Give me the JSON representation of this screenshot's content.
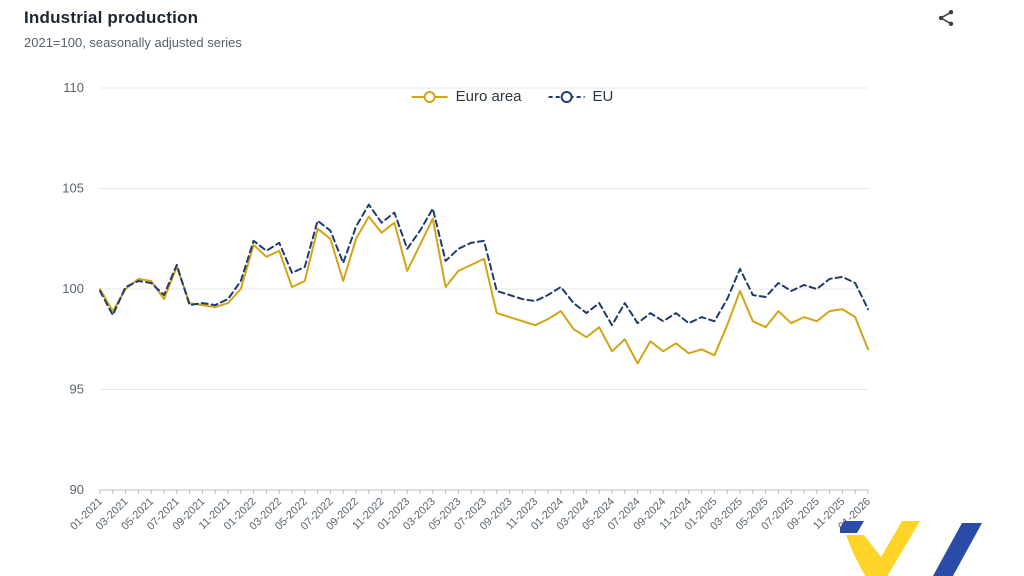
{
  "header": {
    "title": "Industrial production",
    "subtitle": "2021=100, seasonally adjusted series"
  },
  "toolbar": {
    "share_tooltip": "Share"
  },
  "brand": {
    "logo_blue": "#2B4BA8",
    "logo_yellow": "#FFD429"
  },
  "chart_data": {
    "type": "line",
    "title": "Industrial production",
    "subtitle": "2021=100, seasonally adjusted series",
    "ylim": [
      90,
      110
    ],
    "yticks": [
      90,
      95,
      100,
      105,
      110
    ],
    "xtick_every": 2,
    "grid": true,
    "legend_position": "top-center",
    "x": [
      "01-2021",
      "02-2021",
      "03-2021",
      "04-2021",
      "05-2021",
      "06-2021",
      "07-2021",
      "08-2021",
      "09-2021",
      "10-2021",
      "11-2021",
      "12-2021",
      "01-2022",
      "02-2022",
      "03-2022",
      "04-2022",
      "05-2022",
      "06-2022",
      "07-2022",
      "08-2022",
      "09-2022",
      "10-2022",
      "11-2022",
      "12-2022",
      "01-2023",
      "02-2023",
      "03-2023",
      "04-2023",
      "05-2023",
      "06-2023",
      "07-2023",
      "08-2023",
      "09-2023",
      "10-2023",
      "11-2023",
      "12-2023",
      "01-2024",
      "02-2024",
      "03-2024",
      "04-2024",
      "05-2024",
      "06-2024",
      "07-2024",
      "08-2024",
      "09-2024",
      "10-2024",
      "11-2024",
      "12-2024",
      "01-2025",
      "02-2025",
      "03-2025",
      "04-2025",
      "05-2025",
      "06-2025",
      "07-2025",
      "08-2025",
      "09-2025",
      "10-2025",
      "11-2025",
      "12-2025",
      "01-2026"
    ],
    "series": [
      {
        "name": "Euro area",
        "color": "#D2A517",
        "dash": "solid",
        "values": [
          100.0,
          98.9,
          100.0,
          100.5,
          100.4,
          99.5,
          101.1,
          99.3,
          99.2,
          99.1,
          99.3,
          100.0,
          102.2,
          101.6,
          101.9,
          100.1,
          100.4,
          103.0,
          102.5,
          100.4,
          102.5,
          103.6,
          102.8,
          103.3,
          100.9,
          102.2,
          103.5,
          100.1,
          100.9,
          101.2,
          101.5,
          98.8,
          98.6,
          98.4,
          98.2,
          98.5,
          98.9,
          98.0,
          97.6,
          98.1,
          96.9,
          97.5,
          96.3,
          97.4,
          96.9,
          97.3,
          96.8,
          97.0,
          96.7,
          98.2,
          99.9,
          98.4,
          98.1,
          98.9,
          98.3,
          98.6,
          98.4,
          98.9,
          99.0,
          98.6,
          97.0
        ]
      },
      {
        "name": "EU",
        "color": "#1F3B70",
        "dash": "dashed",
        "values": [
          99.9,
          98.7,
          100.1,
          100.4,
          100.3,
          99.7,
          101.2,
          99.2,
          99.3,
          99.2,
          99.5,
          100.4,
          102.4,
          101.9,
          102.3,
          100.8,
          101.1,
          103.4,
          102.9,
          101.3,
          103.1,
          104.2,
          103.3,
          103.8,
          102.0,
          102.9,
          104.0,
          101.4,
          102.0,
          102.3,
          102.4,
          99.9,
          99.7,
          99.5,
          99.4,
          99.7,
          100.1,
          99.3,
          98.8,
          99.3,
          98.2,
          99.3,
          98.3,
          98.8,
          98.4,
          98.8,
          98.3,
          98.6,
          98.4,
          99.5,
          101.0,
          99.7,
          99.6,
          100.3,
          99.9,
          100.2,
          100.0,
          100.5,
          100.6,
          100.3,
          99.0
        ]
      }
    ]
  }
}
